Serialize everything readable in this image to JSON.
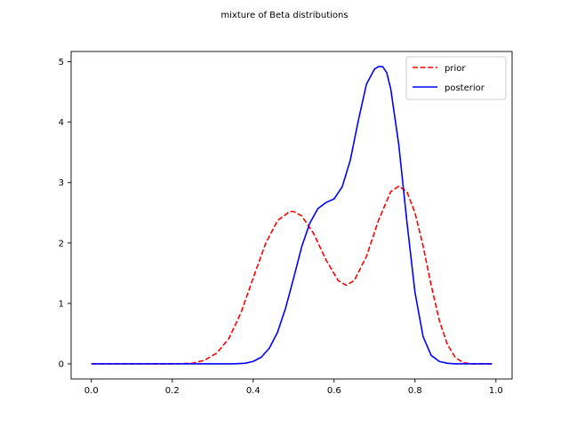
{
  "chart_data": {
    "type": "line",
    "title": "mixture of Beta distributions",
    "xlabel": "",
    "ylabel": "",
    "xlim": [
      -0.05,
      1.04
    ],
    "ylim": [
      -0.25,
      5.17
    ],
    "grid": false,
    "legend_position": "top-right",
    "xticks": [
      0.0,
      0.2,
      0.4,
      0.6,
      0.8,
      1.0
    ],
    "xtick_labels": [
      "0.0",
      "0.2",
      "0.4",
      "0.6",
      "0.8",
      "1.0"
    ],
    "yticks": [
      0,
      1,
      2,
      3,
      4,
      5
    ],
    "ytick_labels": [
      "0",
      "1",
      "2",
      "3",
      "4",
      "5"
    ],
    "series": [
      {
        "name": "prior",
        "color": "#ff0000",
        "style": "dashed",
        "x": [
          0.0,
          0.05,
          0.1,
          0.15,
          0.2,
          0.25,
          0.28,
          0.31,
          0.34,
          0.37,
          0.4,
          0.43,
          0.46,
          0.49,
          0.5,
          0.52,
          0.55,
          0.58,
          0.61,
          0.63,
          0.65,
          0.68,
          0.71,
          0.74,
          0.76,
          0.78,
          0.8,
          0.82,
          0.84,
          0.86,
          0.88,
          0.9,
          0.92,
          0.94,
          0.96,
          0.99
        ],
        "y": [
          0.0,
          0.0,
          0.0,
          0.0,
          0.0,
          0.01,
          0.06,
          0.18,
          0.42,
          0.85,
          1.42,
          1.98,
          2.37,
          2.52,
          2.52,
          2.45,
          2.15,
          1.72,
          1.38,
          1.3,
          1.38,
          1.78,
          2.38,
          2.85,
          2.94,
          2.85,
          2.5,
          1.95,
          1.3,
          0.72,
          0.32,
          0.1,
          0.02,
          0.0,
          0.0,
          0.0
        ]
      },
      {
        "name": "posterior",
        "color": "#0000ff",
        "style": "solid",
        "x": [
          0.0,
          0.1,
          0.2,
          0.3,
          0.35,
          0.38,
          0.4,
          0.42,
          0.44,
          0.46,
          0.48,
          0.5,
          0.52,
          0.54,
          0.56,
          0.58,
          0.6,
          0.62,
          0.64,
          0.66,
          0.68,
          0.7,
          0.71,
          0.72,
          0.73,
          0.74,
          0.76,
          0.78,
          0.8,
          0.82,
          0.84,
          0.86,
          0.88,
          0.9,
          0.93,
          0.96,
          0.99
        ],
        "y": [
          0.0,
          0.0,
          0.0,
          0.0,
          0.0,
          0.01,
          0.04,
          0.11,
          0.26,
          0.52,
          0.92,
          1.42,
          1.94,
          2.33,
          2.57,
          2.67,
          2.73,
          2.93,
          3.37,
          4.03,
          4.63,
          4.88,
          4.92,
          4.92,
          4.82,
          4.55,
          3.62,
          2.35,
          1.18,
          0.45,
          0.14,
          0.04,
          0.01,
          0.0,
          0.0,
          0.0,
          0.0
        ]
      }
    ]
  }
}
